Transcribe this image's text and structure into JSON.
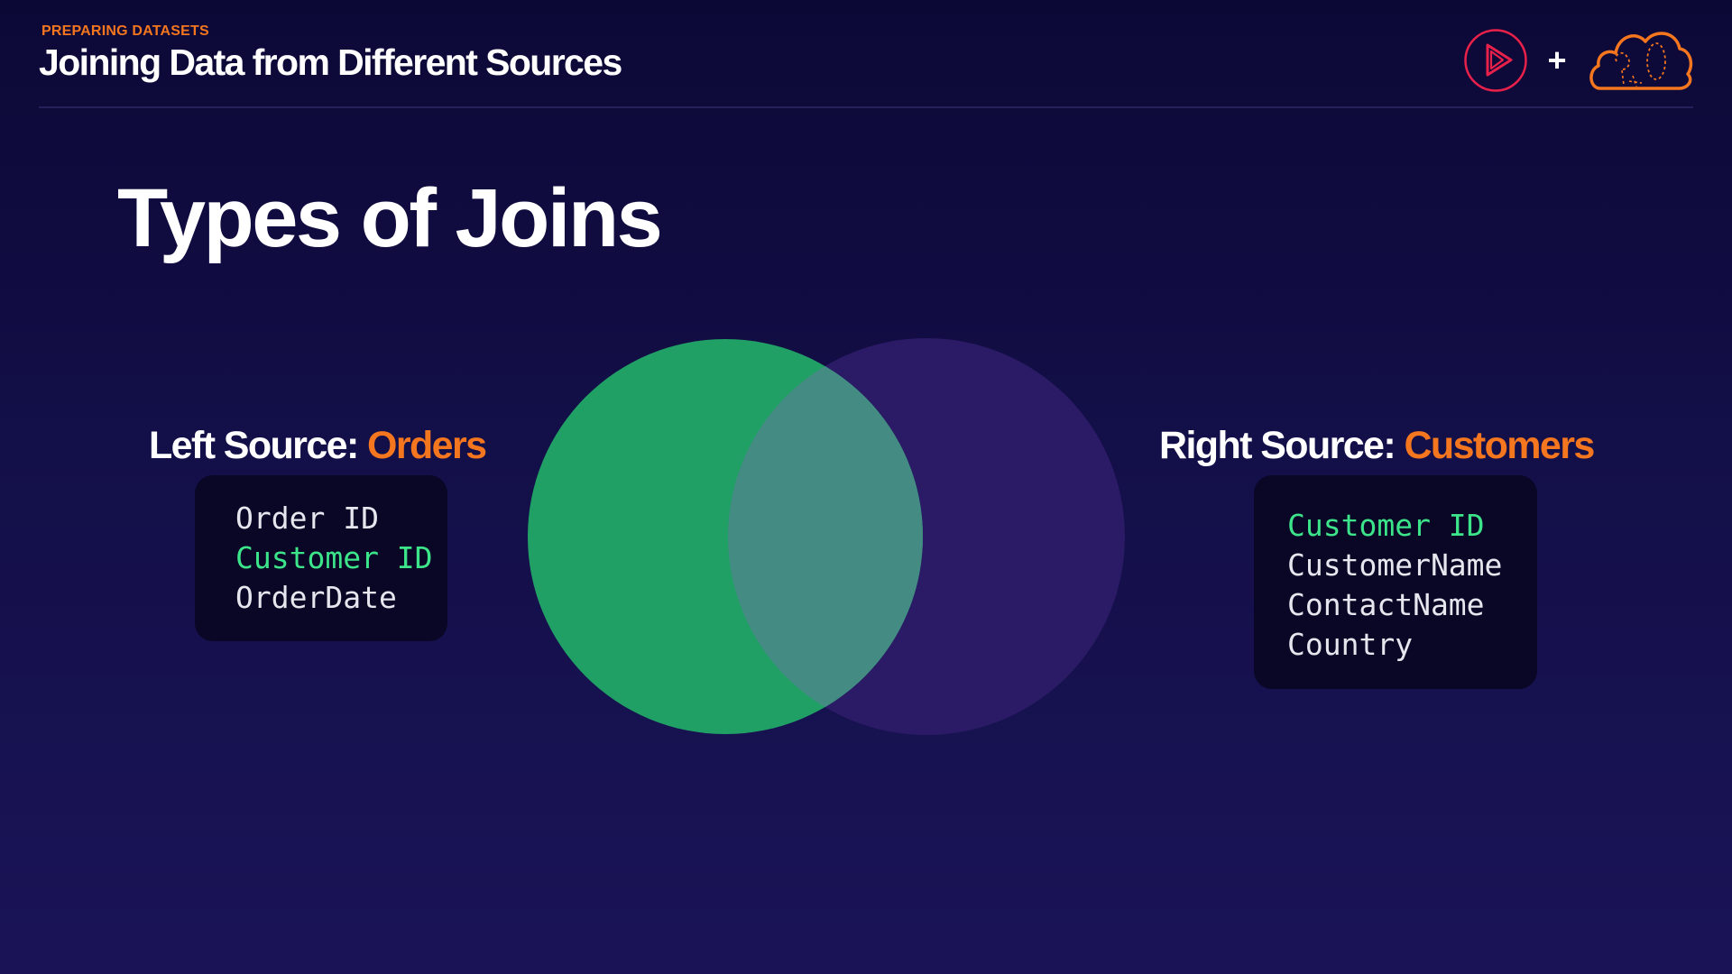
{
  "header": {
    "kicker": "PREPARING DATASETS",
    "title": "Joining Data from Different Sources"
  },
  "slide": {
    "title": "Types of Joins"
  },
  "logos": {
    "play_icon": "play-logo-icon",
    "plus": "+",
    "cloud_icon": "cloud-logo-icon"
  },
  "left_source": {
    "label_prefix": "Left Source: ",
    "name": "Orders",
    "fields": [
      {
        "text": "Order ID",
        "key": false
      },
      {
        "text": "Customer ID",
        "key": true
      },
      {
        "text": "OrderDate",
        "key": false
      }
    ]
  },
  "right_source": {
    "label_prefix": "Right Source: ",
    "name": "Customers",
    "fields": [
      {
        "text": "Customer ID",
        "key": true
      },
      {
        "text": "CustomerName",
        "key": false
      },
      {
        "text": "ContactName",
        "key": false
      },
      {
        "text": "Country",
        "key": false
      }
    ]
  },
  "venn": {
    "sets": [
      "Orders",
      "Customers"
    ],
    "highlighted": "left"
  },
  "colors": {
    "accent_orange": "#f4761f",
    "key_field_green": "#3ce48a",
    "field_text": "#e6e6ee",
    "left_circle": "#21a066",
    "right_circle": "#2b1a66",
    "overlap": "#438b83",
    "logo_red": "#e8214a"
  }
}
